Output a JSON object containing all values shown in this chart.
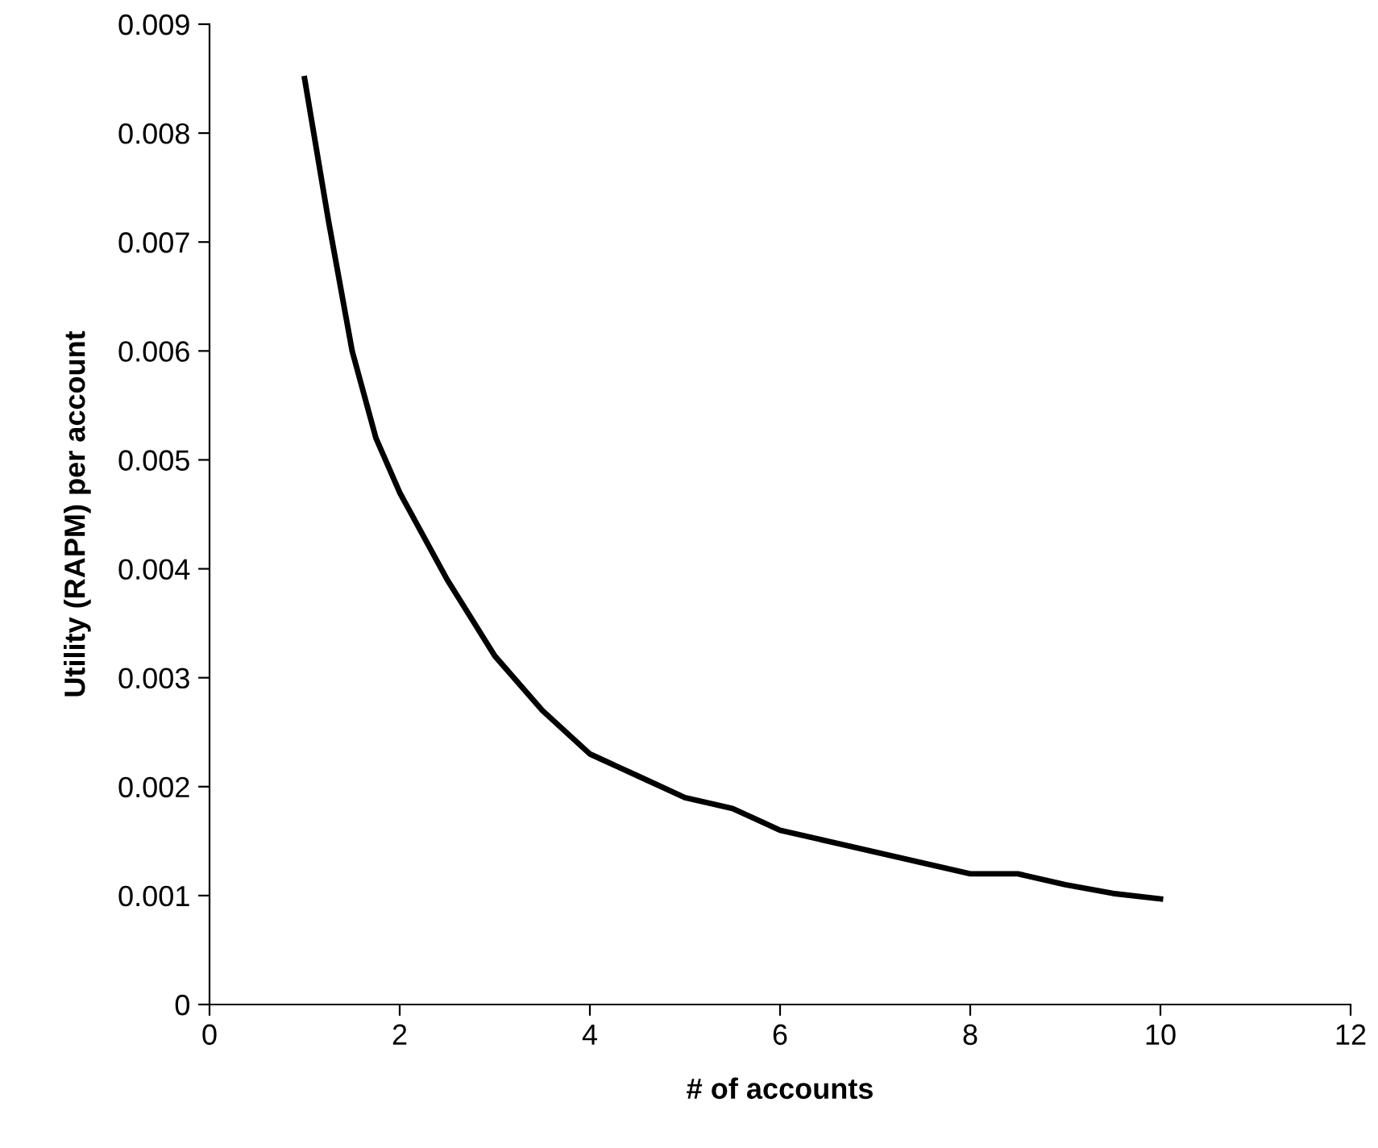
{
  "chart_data": {
    "type": "line",
    "xlabel": "# of accounts",
    "ylabel": "Utility (RAPM) per account",
    "x": [
      1,
      1.25,
      1.5,
      1.75,
      2,
      2.5,
      3,
      3.5,
      4,
      4.5,
      5,
      5.5,
      6,
      6.5,
      7,
      7.5,
      8,
      8.5,
      9,
      9.5,
      10
    ],
    "series": [
      {
        "color": "#000000",
        "values": [
          0.0085,
          0.0072,
          0.006,
          0.0052,
          0.0047,
          0.0039,
          0.0032,
          0.0027,
          0.0023,
          0.0021,
          0.0019,
          0.0018,
          0.0016,
          0.0015,
          0.0014,
          0.0013,
          0.0012,
          0.0012,
          0.0011,
          0.00102,
          0.00097
        ]
      }
    ],
    "xlim": [
      0,
      12
    ],
    "xticks": [
      0,
      2,
      4,
      6,
      8,
      10,
      12
    ],
    "ylim": [
      0,
      0.009
    ],
    "yticks": [
      0,
      0.001,
      0.002,
      0.003,
      0.004,
      0.005,
      0.006,
      0.007,
      0.008,
      0.009
    ],
    "grid": false,
    "legend": false,
    "marker": "none",
    "line_style": "solid"
  }
}
